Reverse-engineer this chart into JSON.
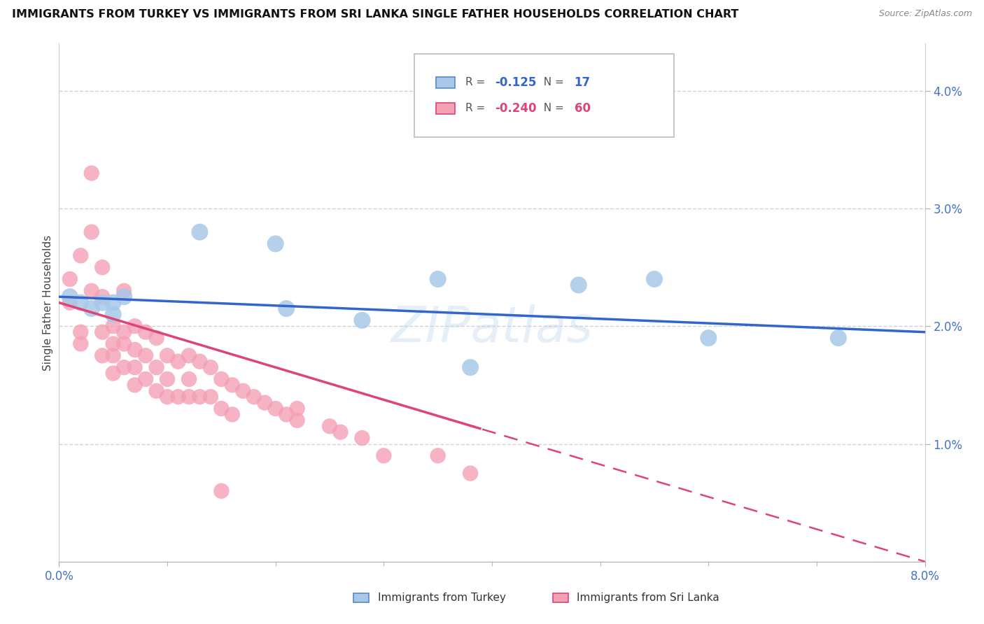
{
  "title": "IMMIGRANTS FROM TURKEY VS IMMIGRANTS FROM SRI LANKA SINGLE FATHER HOUSEHOLDS CORRELATION CHART",
  "source": "Source: ZipAtlas.com",
  "ylabel": "Single Father Households",
  "turkey_color": "#a8c8e8",
  "srilanka_color": "#f4a0b5",
  "line_turkey_color": "#3366cc",
  "line_srilanka_color": "#dd4477",
  "watermark": "ZIPatlas",
  "background_color": "#ffffff",
  "grid_color": "#cccccc",
  "turkey_x": [
    0.001,
    0.002,
    0.003,
    0.004,
    0.005,
    0.005,
    0.006,
    0.013,
    0.02,
    0.021,
    0.028,
    0.035,
    0.038,
    0.048,
    0.055,
    0.06,
    0.072
  ],
  "turkey_y": [
    0.0225,
    0.022,
    0.0215,
    0.022,
    0.022,
    0.021,
    0.0225,
    0.028,
    0.027,
    0.0215,
    0.0205,
    0.024,
    0.0165,
    0.0235,
    0.024,
    0.019,
    0.019
  ],
  "srilanka_x": [
    0.001,
    0.001,
    0.002,
    0.002,
    0.002,
    0.003,
    0.003,
    0.003,
    0.004,
    0.004,
    0.004,
    0.004,
    0.005,
    0.005,
    0.005,
    0.005,
    0.006,
    0.006,
    0.006,
    0.006,
    0.007,
    0.007,
    0.007,
    0.007,
    0.008,
    0.008,
    0.008,
    0.009,
    0.009,
    0.009,
    0.01,
    0.01,
    0.01,
    0.011,
    0.011,
    0.012,
    0.012,
    0.012,
    0.013,
    0.013,
    0.014,
    0.014,
    0.015,
    0.015,
    0.016,
    0.016,
    0.017,
    0.018,
    0.019,
    0.02,
    0.021,
    0.022,
    0.022,
    0.025,
    0.026,
    0.028,
    0.03,
    0.035,
    0.038,
    0.015
  ],
  "srilanka_y": [
    0.024,
    0.022,
    0.026,
    0.0195,
    0.0185,
    0.033,
    0.028,
    0.023,
    0.025,
    0.0195,
    0.0225,
    0.0175,
    0.02,
    0.0185,
    0.0175,
    0.016,
    0.023,
    0.0195,
    0.0185,
    0.0165,
    0.02,
    0.018,
    0.0165,
    0.015,
    0.0195,
    0.0175,
    0.0155,
    0.019,
    0.0165,
    0.0145,
    0.0175,
    0.0155,
    0.014,
    0.017,
    0.014,
    0.0175,
    0.0155,
    0.014,
    0.017,
    0.014,
    0.0165,
    0.014,
    0.0155,
    0.013,
    0.015,
    0.0125,
    0.0145,
    0.014,
    0.0135,
    0.013,
    0.0125,
    0.013,
    0.012,
    0.0115,
    0.011,
    0.0105,
    0.009,
    0.009,
    0.0075,
    0.006
  ],
  "xlim": [
    0.0,
    0.08
  ],
  "ylim": [
    0.0,
    0.044
  ],
  "xtick_vals": [
    0.0,
    0.08
  ],
  "xtick_labels": [
    "0.0%",
    "8.0%"
  ],
  "ytick_vals": [
    0.01,
    0.02,
    0.03,
    0.04
  ],
  "ytick_labels": [
    "1.0%",
    "2.0%",
    "3.0%",
    "4.0%"
  ],
  "legend_blue_r": "-0.125",
  "legend_blue_n": "17",
  "legend_pink_r": "-0.240",
  "legend_pink_n": "60"
}
